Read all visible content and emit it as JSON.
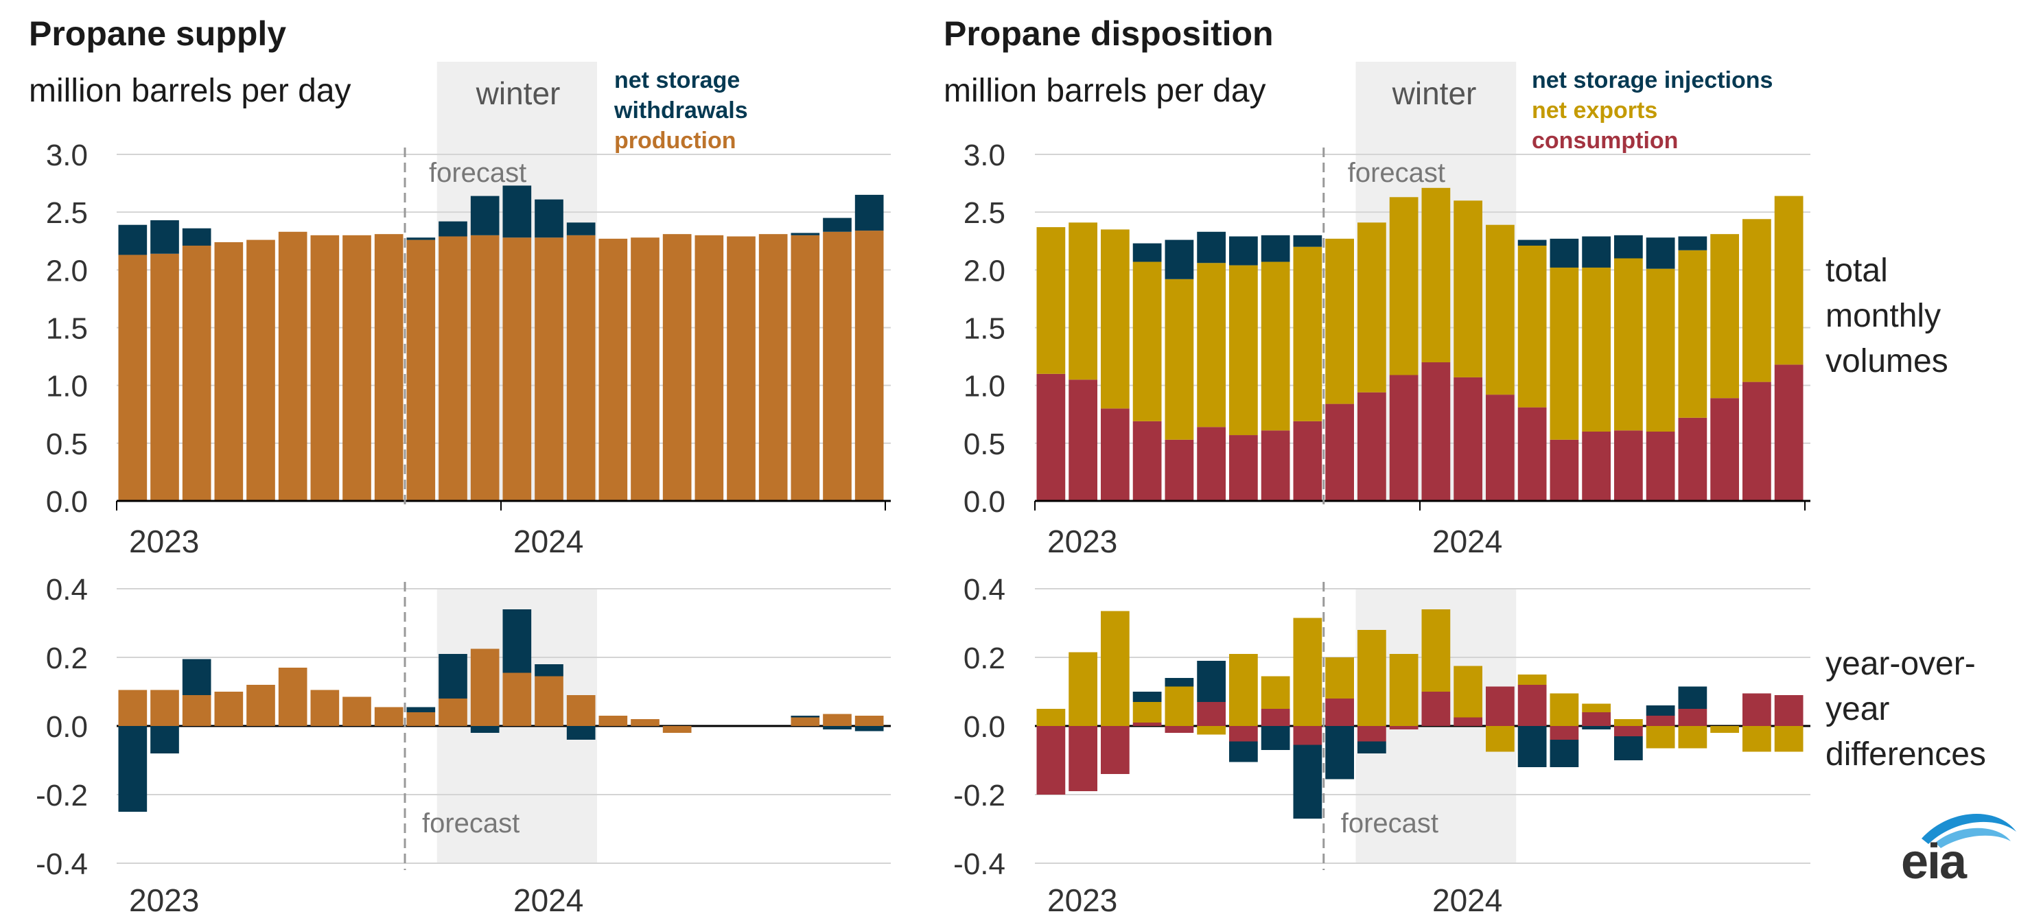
{
  "colors": {
    "storage": "#053952",
    "production": "#bd732a",
    "exports": "#c49a00",
    "consumption": "#a33340",
    "winter_shade": "#efefef",
    "grid": "#d4d4d4",
    "axis_text": "#333333",
    "forecast_line": "#999999"
  },
  "left_panel": {
    "title": "Propane supply",
    "unit": "million barrels per day",
    "legend": [
      "net storage",
      "withdrawals",
      "production"
    ]
  },
  "right_panel": {
    "title": "Propane disposition",
    "unit": "million barrels per day",
    "legend": [
      "net storage injections",
      "net exports",
      "consumption"
    ]
  },
  "side_labels": {
    "top": [
      "total",
      "monthly",
      "volumes"
    ],
    "bottom": [
      "year-over-",
      "year",
      "differences"
    ]
  },
  "annotations": {
    "winter": "winter",
    "forecast": "forecast"
  },
  "logo_text": "eia",
  "chart_data": [
    {
      "id": "supply_total",
      "type": "bar",
      "stacked": true,
      "categories": [
        "2023-01",
        "2023-02",
        "2023-03",
        "2023-04",
        "2023-05",
        "2023-06",
        "2023-07",
        "2023-08",
        "2023-09",
        "2023-10",
        "2023-11",
        "2023-12",
        "2024-01",
        "2024-02",
        "2024-03",
        "2024-04",
        "2024-05",
        "2024-06",
        "2024-07",
        "2024-08",
        "2024-09",
        "2024-10",
        "2024-11",
        "2024-12"
      ],
      "x_tick_labels": [
        {
          "label": "2023",
          "index": 0
        },
        {
          "label": "2024",
          "index": 12
        }
      ],
      "yticks": [
        "3.0",
        "2.5",
        "2.0",
        "1.5",
        "1.0",
        "0.5",
        "0.0"
      ],
      "ylim": [
        0,
        3.0
      ],
      "forecast_start_index": 9,
      "winter_index_range": [
        10,
        14
      ],
      "series": [
        {
          "name": "production",
          "color_key": "production",
          "values": [
            2.13,
            2.14,
            2.21,
            2.24,
            2.26,
            2.33,
            2.3,
            2.3,
            2.31,
            2.26,
            2.29,
            2.3,
            2.28,
            2.28,
            2.3,
            2.27,
            2.28,
            2.31,
            2.3,
            2.29,
            2.31,
            2.3,
            2.33,
            2.34
          ]
        },
        {
          "name": "net storage withdrawals",
          "color_key": "storage",
          "values": [
            0.26,
            0.29,
            0.15,
            0,
            0,
            0,
            0,
            0,
            0,
            0.02,
            0.13,
            0.34,
            0.45,
            0.33,
            0.11,
            0,
            0,
            0,
            0,
            0,
            0,
            0.02,
            0.12,
            0.31
          ]
        }
      ]
    },
    {
      "id": "supply_diff",
      "type": "bar",
      "stacked": true,
      "categories": [
        "2023-01",
        "2023-02",
        "2023-03",
        "2023-04",
        "2023-05",
        "2023-06",
        "2023-07",
        "2023-08",
        "2023-09",
        "2023-10",
        "2023-11",
        "2023-12",
        "2024-01",
        "2024-02",
        "2024-03",
        "2024-04",
        "2024-05",
        "2024-06",
        "2024-07",
        "2024-08",
        "2024-09",
        "2024-10",
        "2024-11",
        "2024-12"
      ],
      "x_tick_labels": [
        {
          "label": "2023",
          "index": 0
        },
        {
          "label": "2024",
          "index": 12
        }
      ],
      "yticks": [
        "0.4",
        "0.2",
        "0.0",
        "-0.2",
        "-0.4"
      ],
      "ylim": [
        -0.4,
        0.4
      ],
      "forecast_start_index": 9,
      "winter_index_range": [
        10,
        14
      ],
      "series": [
        {
          "name": "production",
          "color_key": "production",
          "values": [
            0.105,
            0.105,
            0.09,
            0.1,
            0.12,
            0.17,
            0.105,
            0.085,
            0.055,
            0.04,
            0.08,
            0.225,
            0.155,
            0.145,
            0.09,
            0.03,
            0.02,
            -0.02,
            0,
            0,
            0,
            0.025,
            0.035,
            0.03
          ]
        },
        {
          "name": "net storage withdrawals",
          "color_key": "storage",
          "values": [
            -0.25,
            -0.08,
            0.105,
            0,
            0,
            0,
            0,
            0,
            0,
            0.015,
            0.13,
            -0.02,
            0.185,
            0.035,
            -0.04,
            0,
            0,
            0,
            0,
            0,
            0,
            0.005,
            -0.01,
            -0.015
          ]
        }
      ]
    },
    {
      "id": "disposition_total",
      "type": "bar",
      "stacked": true,
      "categories": [
        "2023-01",
        "2023-02",
        "2023-03",
        "2023-04",
        "2023-05",
        "2023-06",
        "2023-07",
        "2023-08",
        "2023-09",
        "2023-10",
        "2023-11",
        "2023-12",
        "2024-01",
        "2024-02",
        "2024-03",
        "2024-04",
        "2024-05",
        "2024-06",
        "2024-07",
        "2024-08",
        "2024-09",
        "2024-10",
        "2024-11",
        "2024-12"
      ],
      "x_tick_labels": [
        {
          "label": "2023",
          "index": 0
        },
        {
          "label": "2024",
          "index": 12
        }
      ],
      "yticks": [
        "3.0",
        "2.5",
        "2.0",
        "1.5",
        "1.0",
        "0.5",
        "0.0"
      ],
      "ylim": [
        0,
        3.0
      ],
      "forecast_start_index": 9,
      "winter_index_range": [
        10,
        14
      ],
      "series": [
        {
          "name": "consumption",
          "color_key": "consumption",
          "values": [
            1.1,
            1.05,
            0.8,
            0.69,
            0.53,
            0.64,
            0.57,
            0.61,
            0.69,
            0.84,
            0.94,
            1.09,
            1.2,
            1.07,
            0.92,
            0.81,
            0.53,
            0.6,
            0.61,
            0.6,
            0.72,
            0.89,
            1.03,
            1.18
          ]
        },
        {
          "name": "net exports",
          "color_key": "exports",
          "values": [
            1.27,
            1.36,
            1.55,
            1.38,
            1.39,
            1.42,
            1.47,
            1.46,
            1.51,
            1.43,
            1.47,
            1.54,
            1.51,
            1.53,
            1.47,
            1.4,
            1.49,
            1.42,
            1.49,
            1.41,
            1.45,
            1.42,
            1.41,
            1.46
          ]
        },
        {
          "name": "net storage injections",
          "color_key": "storage",
          "values": [
            0,
            0,
            0,
            0.16,
            0.34,
            0.27,
            0.25,
            0.23,
            0.1,
            0,
            0,
            0,
            0,
            0,
            0,
            0.05,
            0.25,
            0.27,
            0.2,
            0.27,
            0.12,
            0,
            0,
            0
          ]
        }
      ]
    },
    {
      "id": "disposition_diff",
      "type": "bar",
      "stacked": true,
      "categories": [
        "2023-01",
        "2023-02",
        "2023-03",
        "2023-04",
        "2023-05",
        "2023-06",
        "2023-07",
        "2023-08",
        "2023-09",
        "2023-10",
        "2023-11",
        "2023-12",
        "2024-01",
        "2024-02",
        "2024-03",
        "2024-04",
        "2024-05",
        "2024-06",
        "2024-07",
        "2024-08",
        "2024-09",
        "2024-10",
        "2024-11",
        "2024-12"
      ],
      "x_tick_labels": [
        {
          "label": "2023",
          "index": 0
        },
        {
          "label": "2024",
          "index": 12
        }
      ],
      "yticks": [
        "0.4",
        "0.2",
        "0.0",
        "-0.2",
        "-0.4"
      ],
      "ylim": [
        -0.4,
        0.4
      ],
      "forecast_start_index": 9,
      "winter_index_range": [
        10,
        14
      ],
      "series": [
        {
          "name": "consumption",
          "color_key": "consumption",
          "values": [
            -0.2,
            -0.19,
            -0.14,
            0.01,
            -0.02,
            0.07,
            -0.045,
            0.05,
            -0.055,
            0.08,
            -0.045,
            -0.01,
            0.1,
            0.025,
            0.115,
            0.12,
            -0.04,
            0.04,
            -0.03,
            0.03,
            0.05,
            0,
            0.095,
            0.09
          ]
        },
        {
          "name": "net exports",
          "color_key": "exports",
          "values": [
            0.05,
            0.215,
            0.335,
            0.06,
            0.115,
            -0.025,
            0.21,
            0.095,
            0.315,
            0.12,
            0.28,
            0.21,
            0.24,
            0.15,
            -0.075,
            0.03,
            0.095,
            0.025,
            0.02,
            -0.065,
            -0.065,
            -0.02,
            -0.075,
            -0.075
          ]
        },
        {
          "name": "net storage injections",
          "color_key": "storage",
          "values": [
            0,
            0,
            0,
            0.03,
            0.025,
            0.12,
            -0.06,
            -0.07,
            -0.215,
            -0.155,
            -0.035,
            0,
            0,
            0,
            0,
            -0.12,
            -0.08,
            -0.01,
            -0.07,
            0.03,
            0.065,
            0,
            0,
            0
          ]
        }
      ]
    }
  ]
}
